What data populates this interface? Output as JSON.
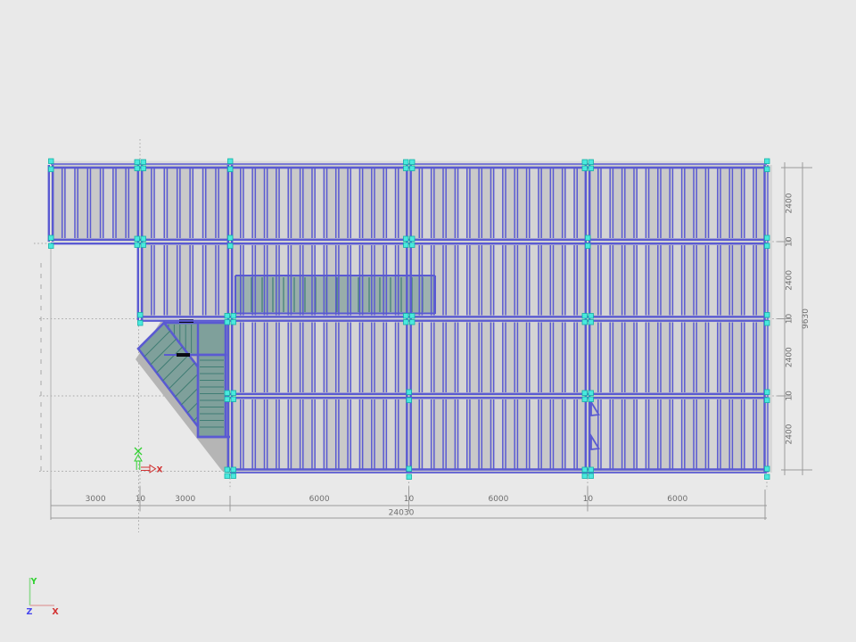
{
  "drawing": {
    "kind_label": "cold-formed-steel-floor-framing-plan"
  },
  "dimensions": {
    "bottom_segments": [
      "3000",
      "10",
      "3000",
      "6000",
      "10",
      "6000",
      "10",
      "6000"
    ],
    "bottom_total": "24030",
    "right_segments": [
      "2400",
      "10",
      "2400",
      "10",
      "2400",
      "10",
      "2400"
    ],
    "right_total": "9630"
  },
  "axes": {
    "global": {
      "y": "Y",
      "z": "Z",
      "x": "X"
    },
    "ucs": {
      "x": "X"
    }
  },
  "colors": {
    "background": "#e9e9e9",
    "slab": "#c9c9c9",
    "slab_light": "#d4d4d4",
    "edge_light": "#dadada",
    "beam": "#5a5ad2",
    "beam_dark": "#4444b4",
    "node_fill": "#4ae9de",
    "node_edge": "#12b2a6",
    "opening_fill": "#6f958f",
    "opening_line": "#3f7d74",
    "stair_gray": "#b5b5b5",
    "stair_fill": "#7fa09b",
    "black_bar": "#0a0a14",
    "dim_line": "#9b9b9b",
    "dim_text": "#6e6e6e",
    "dash": "#a9a9a9",
    "axis_y": "#2fd12f",
    "axis_x": "#d23232",
    "axis_z": "#4747ee",
    "axis_shaft_v": "#8fd98f",
    "axis_shaft_h": "#dfa8a8"
  }
}
